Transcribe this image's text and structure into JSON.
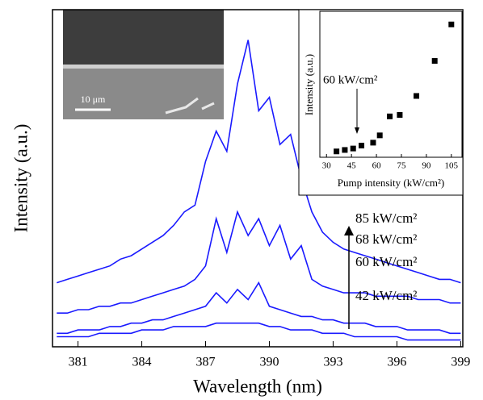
{
  "chart_data": [
    {
      "type": "line",
      "x_label": "Wavelength (nm)",
      "y_label": "Intensity (a.u.)",
      "image_label": "10 μm",
      "xlim": [
        379.8,
        399.1
      ],
      "ylim": [
        0,
        100
      ],
      "xticks": [
        381,
        384,
        387,
        390,
        393,
        396,
        399
      ],
      "x": [
        380,
        380.5,
        381,
        381.5,
        382,
        382.5,
        383,
        383.5,
        384,
        384.5,
        385,
        385.5,
        386,
        386.5,
        387,
        387.5,
        388,
        388.5,
        389,
        389.5,
        390,
        390.5,
        391,
        391.5,
        392,
        392.5,
        393,
        393.5,
        394,
        394.5,
        395,
        395.5,
        396,
        396.5,
        397,
        397.5,
        398,
        398.5,
        399
      ],
      "series": [
        {
          "name": "85 kW/cm²",
          "color": "#1a1aff",
          "values": [
            19,
            20,
            21,
            22,
            23,
            24,
            26,
            27,
            29,
            31,
            33,
            36,
            40,
            42,
            55,
            64,
            58,
            78,
            91,
            70,
            74,
            60,
            63,
            50,
            40,
            34,
            31,
            29,
            28,
            27,
            26,
            25,
            24,
            23,
            22,
            21,
            20,
            20,
            19
          ]
        },
        {
          "name": "68 kW/cm²",
          "color": "#1a1aff",
          "values": [
            10,
            10,
            11,
            11,
            12,
            12,
            13,
            13,
            14,
            15,
            16,
            17,
            18,
            20,
            24,
            38,
            28,
            40,
            33,
            38,
            30,
            36,
            26,
            30,
            20,
            18,
            17,
            16,
            16,
            16,
            15,
            15,
            15,
            15,
            14,
            14,
            14,
            13,
            13
          ]
        },
        {
          "name": "60 kW/cm²",
          "color": "#1a1aff",
          "values": [
            4,
            4,
            5,
            5,
            5,
            6,
            6,
            7,
            7,
            8,
            8,
            9,
            10,
            11,
            12,
            16,
            13,
            17,
            14,
            19,
            12,
            11,
            10,
            9,
            9,
            8,
            8,
            7,
            7,
            7,
            6,
            6,
            6,
            5,
            5,
            5,
            5,
            4,
            4
          ]
        },
        {
          "name": "42 kW/cm²",
          "color": "#1a1aff",
          "values": [
            3,
            3,
            3,
            3,
            4,
            4,
            4,
            4,
            5,
            5,
            5,
            6,
            6,
            6,
            6,
            7,
            7,
            7,
            7,
            7,
            6,
            6,
            5,
            5,
            5,
            4,
            4,
            4,
            3,
            3,
            3,
            3,
            3,
            2,
            2,
            2,
            2,
            2,
            2
          ]
        }
      ]
    },
    {
      "type": "scatter",
      "x_label": "Pump intensity (kW/cm²)",
      "y_label": "Intensity (a.u.)",
      "annotation": "60 kW/cm²",
      "xlim": [
        26,
        111.4
      ],
      "ylim": [
        0,
        100
      ],
      "xticks": [
        30,
        45,
        60,
        75,
        90,
        105
      ],
      "color": "#000000",
      "x": [
        36,
        41,
        46,
        51,
        58,
        62,
        68,
        74,
        84,
        95,
        105
      ],
      "values": [
        4,
        5,
        6,
        8,
        10,
        15,
        28,
        29,
        42,
        66,
        91
      ]
    }
  ]
}
